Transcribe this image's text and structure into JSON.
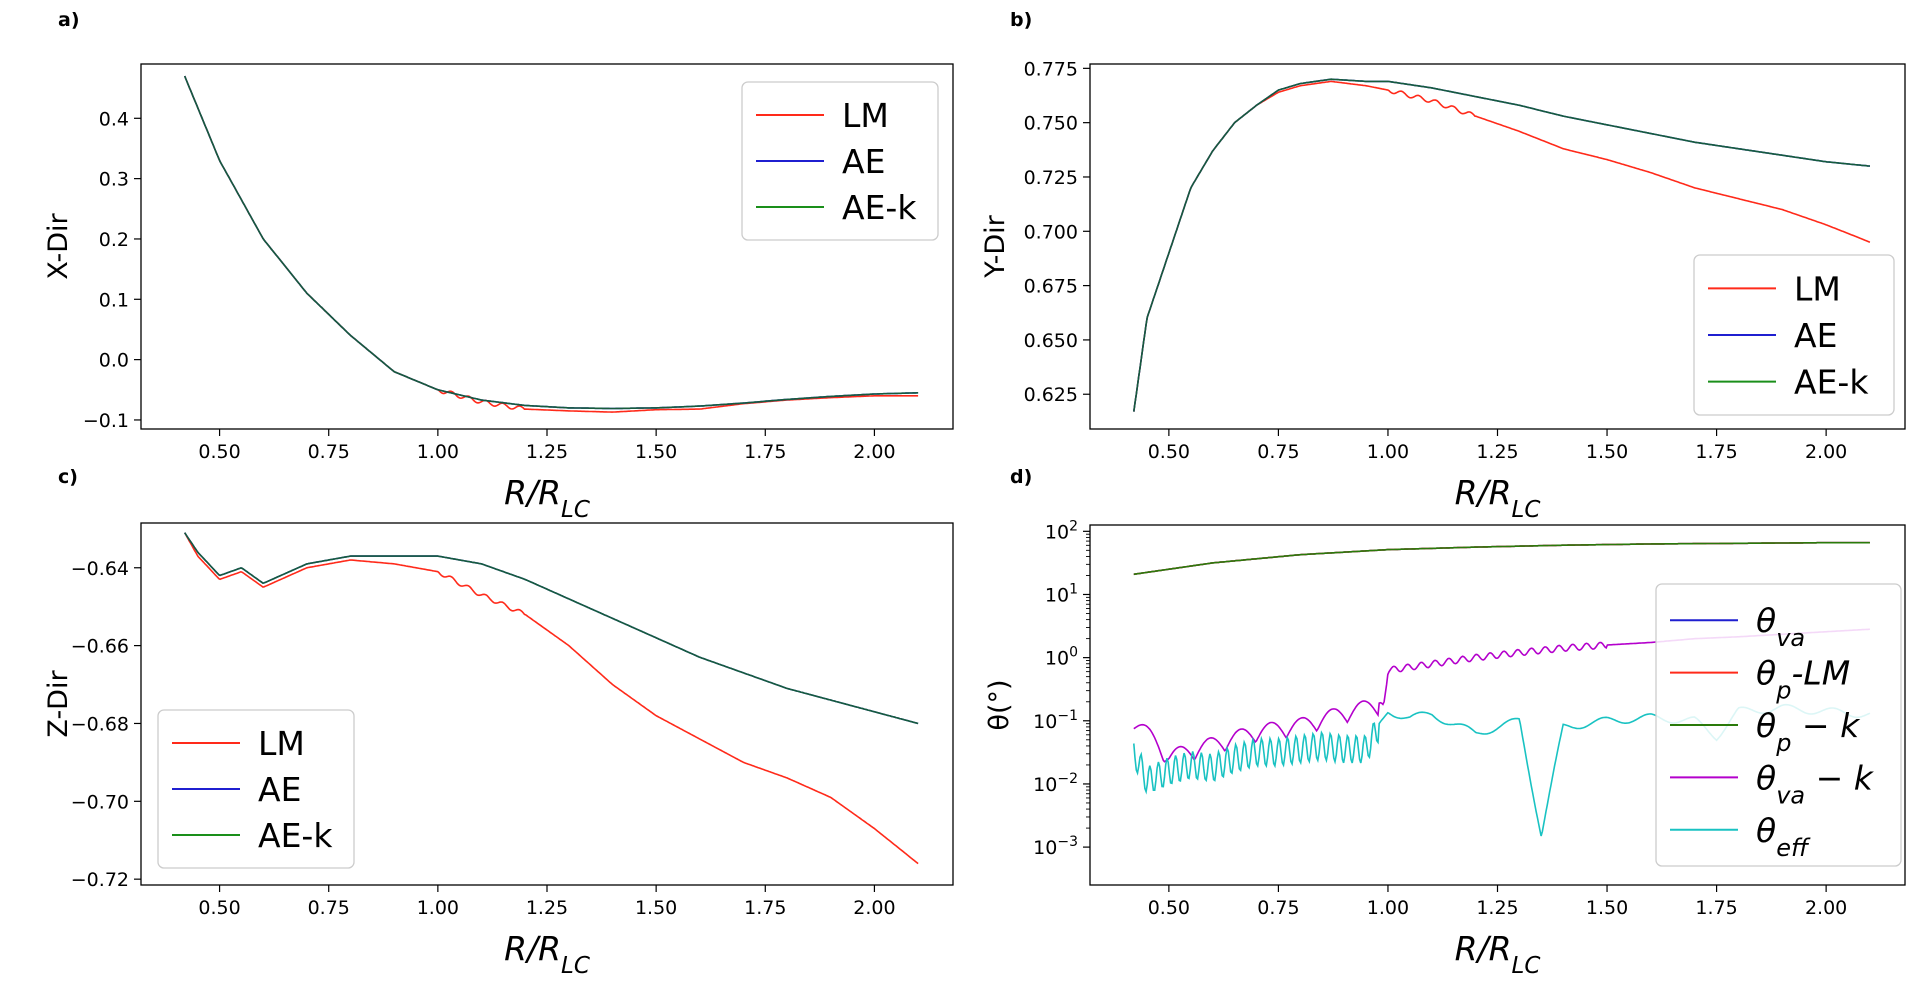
{
  "figure": {
    "panels": [
      "a)",
      "b)",
      "c)",
      "d)"
    ],
    "xlabel_main": "R/R",
    "xlabel_sub": "LC"
  },
  "colors": {
    "LM": "#ff2a1a",
    "AE": "#1f1fd0",
    "AEk": "#1a8f1a",
    "overlay": "#165c3c",
    "theta_va": "#1f1fd0",
    "theta_p_LM": "#ff2a1a",
    "theta_p_k": "#2a7a0a",
    "theta_va_k": "#b400cc",
    "theta_eff": "#19c2c2"
  },
  "chart_data": [
    {
      "panel": "a)",
      "type": "line",
      "ylabel": "X-Dir",
      "xlabel": "R/R_LC",
      "xlim": [
        0.32,
        2.18
      ],
      "ylim": [
        -0.115,
        0.49
      ],
      "xticks": [
        0.5,
        0.75,
        1.0,
        1.25,
        1.5,
        1.75,
        2.0
      ],
      "xtick_labels": [
        "0.50",
        "0.75",
        "1.00",
        "1.25",
        "1.50",
        "1.75",
        "2.00"
      ],
      "yticks": [
        -0.1,
        0.0,
        0.1,
        0.2,
        0.3,
        0.4
      ],
      "ytick_labels": [
        "−0.1",
        "0.0",
        "0.1",
        "0.2",
        "0.3",
        "0.4"
      ],
      "legend_position": "top-right",
      "series": [
        {
          "name": "LM",
          "x": [
            0.42,
            0.5,
            0.6,
            0.7,
            0.8,
            0.9,
            1.0,
            1.1,
            1.2,
            1.3,
            1.4,
            1.5,
            1.6,
            1.7,
            1.8,
            1.9,
            2.0,
            2.1
          ],
          "y": [
            0.47,
            0.33,
            0.2,
            0.11,
            0.04,
            -0.02,
            -0.05,
            -0.07,
            -0.082,
            -0.085,
            -0.087,
            -0.083,
            -0.082,
            -0.073,
            -0.067,
            -0.063,
            -0.06,
            -0.06
          ]
        },
        {
          "name": "AE",
          "x": [
            0.42,
            0.5,
            0.6,
            0.7,
            0.8,
            0.9,
            1.0,
            1.1,
            1.2,
            1.3,
            1.4,
            1.5,
            1.6,
            1.7,
            1.8,
            1.9,
            2.0,
            2.1
          ],
          "y": [
            0.47,
            0.33,
            0.2,
            0.11,
            0.04,
            -0.02,
            -0.05,
            -0.067,
            -0.076,
            -0.08,
            -0.081,
            -0.08,
            -0.077,
            -0.072,
            -0.066,
            -0.061,
            -0.057,
            -0.055
          ]
        },
        {
          "name": "AE-k",
          "x": [
            0.42,
            0.5,
            0.6,
            0.7,
            0.8,
            0.9,
            1.0,
            1.1,
            1.2,
            1.3,
            1.4,
            1.5,
            1.6,
            1.7,
            1.8,
            1.9,
            2.0,
            2.1
          ],
          "y": [
            0.47,
            0.33,
            0.2,
            0.11,
            0.04,
            -0.02,
            -0.05,
            -0.067,
            -0.076,
            -0.08,
            -0.081,
            -0.08,
            -0.077,
            -0.072,
            -0.066,
            -0.061,
            -0.057,
            -0.055
          ]
        }
      ]
    },
    {
      "panel": "b)",
      "type": "line",
      "ylabel": "Y-Dir",
      "xlabel": "R/R_LC",
      "xlim": [
        0.32,
        2.18
      ],
      "ylim": [
        0.609,
        0.777
      ],
      "xticks": [
        0.5,
        0.75,
        1.0,
        1.25,
        1.5,
        1.75,
        2.0
      ],
      "xtick_labels": [
        "0.50",
        "0.75",
        "1.00",
        "1.25",
        "1.50",
        "1.75",
        "2.00"
      ],
      "yticks": [
        0.625,
        0.65,
        0.675,
        0.7,
        0.725,
        0.75,
        0.775
      ],
      "ytick_labels": [
        "0.625",
        "0.650",
        "0.675",
        "0.700",
        "0.725",
        "0.750",
        "0.775"
      ],
      "legend_position": "bottom-right",
      "series": [
        {
          "name": "LM",
          "x": [
            0.42,
            0.45,
            0.5,
            0.55,
            0.6,
            0.65,
            0.7,
            0.75,
            0.8,
            0.87,
            0.95,
            1.0,
            1.1,
            1.2,
            1.3,
            1.4,
            1.5,
            1.6,
            1.7,
            1.8,
            1.9,
            2.0,
            2.1
          ],
          "y": [
            0.617,
            0.66,
            0.69,
            0.72,
            0.737,
            0.75,
            0.758,
            0.764,
            0.767,
            0.769,
            0.767,
            0.765,
            0.76,
            0.753,
            0.746,
            0.738,
            0.733,
            0.727,
            0.72,
            0.715,
            0.71,
            0.703,
            0.695
          ]
        },
        {
          "name": "AE",
          "x": [
            0.42,
            0.45,
            0.5,
            0.55,
            0.6,
            0.65,
            0.7,
            0.75,
            0.8,
            0.87,
            0.95,
            1.0,
            1.1,
            1.2,
            1.3,
            1.4,
            1.5,
            1.6,
            1.7,
            1.8,
            1.9,
            2.0,
            2.1
          ],
          "y": [
            0.617,
            0.66,
            0.69,
            0.72,
            0.737,
            0.75,
            0.758,
            0.765,
            0.768,
            0.77,
            0.769,
            0.769,
            0.766,
            0.762,
            0.758,
            0.753,
            0.749,
            0.745,
            0.741,
            0.738,
            0.735,
            0.732,
            0.73
          ]
        },
        {
          "name": "AE-k",
          "x": [
            0.42,
            0.45,
            0.5,
            0.55,
            0.6,
            0.65,
            0.7,
            0.75,
            0.8,
            0.87,
            0.95,
            1.0,
            1.1,
            1.2,
            1.3,
            1.4,
            1.5,
            1.6,
            1.7,
            1.8,
            1.9,
            2.0,
            2.1
          ],
          "y": [
            0.617,
            0.66,
            0.69,
            0.72,
            0.737,
            0.75,
            0.758,
            0.765,
            0.768,
            0.77,
            0.769,
            0.769,
            0.766,
            0.762,
            0.758,
            0.753,
            0.749,
            0.745,
            0.741,
            0.738,
            0.735,
            0.732,
            0.73
          ]
        }
      ]
    },
    {
      "panel": "c)",
      "type": "line",
      "ylabel": "Z-Dir",
      "xlabel": "R/R_LC",
      "xlim": [
        0.32,
        2.18
      ],
      "ylim": [
        -0.7215,
        -0.6285
      ],
      "xticks": [
        0.5,
        0.75,
        1.0,
        1.25,
        1.5,
        1.75,
        2.0
      ],
      "xtick_labels": [
        "0.50",
        "0.75",
        "1.00",
        "1.25",
        "1.50",
        "1.75",
        "2.00"
      ],
      "yticks": [
        -0.72,
        -0.7,
        -0.68,
        -0.66,
        -0.64
      ],
      "ytick_labels": [
        "−0.72",
        "−0.70",
        "−0.68",
        "−0.66",
        "−0.64"
      ],
      "legend_position": "bottom-left",
      "series": [
        {
          "name": "LM",
          "x": [
            0.42,
            0.45,
            0.5,
            0.55,
            0.6,
            0.7,
            0.8,
            0.9,
            1.0,
            1.1,
            1.2,
            1.3,
            1.4,
            1.5,
            1.6,
            1.7,
            1.8,
            1.9,
            2.0,
            2.1
          ],
          "y": [
            -0.631,
            -0.637,
            -0.643,
            -0.641,
            -0.645,
            -0.64,
            -0.638,
            -0.639,
            -0.641,
            -0.647,
            -0.652,
            -0.66,
            -0.67,
            -0.678,
            -0.684,
            -0.69,
            -0.694,
            -0.699,
            -0.707,
            -0.716
          ]
        },
        {
          "name": "AE",
          "x": [
            0.42,
            0.45,
            0.5,
            0.55,
            0.6,
            0.7,
            0.8,
            0.9,
            1.0,
            1.1,
            1.2,
            1.3,
            1.4,
            1.5,
            1.6,
            1.7,
            1.8,
            1.9,
            2.0,
            2.1
          ],
          "y": [
            -0.631,
            -0.636,
            -0.642,
            -0.64,
            -0.644,
            -0.639,
            -0.637,
            -0.637,
            -0.637,
            -0.639,
            -0.643,
            -0.648,
            -0.653,
            -0.658,
            -0.663,
            -0.667,
            -0.671,
            -0.674,
            -0.677,
            -0.68
          ]
        },
        {
          "name": "AE-k",
          "x": [
            0.42,
            0.45,
            0.5,
            0.55,
            0.6,
            0.7,
            0.8,
            0.9,
            1.0,
            1.1,
            1.2,
            1.3,
            1.4,
            1.5,
            1.6,
            1.7,
            1.8,
            1.9,
            2.0,
            2.1
          ],
          "y": [
            -0.631,
            -0.636,
            -0.642,
            -0.64,
            -0.644,
            -0.639,
            -0.637,
            -0.637,
            -0.637,
            -0.639,
            -0.643,
            -0.648,
            -0.653,
            -0.658,
            -0.663,
            -0.667,
            -0.671,
            -0.674,
            -0.677,
            -0.68
          ]
        }
      ]
    },
    {
      "panel": "d)",
      "type": "line",
      "yscale": "log",
      "ylabel": "θ(°)",
      "xlabel": "R/R_LC",
      "xlim": [
        0.32,
        2.18
      ],
      "ylim_log10": [
        -3.6,
        2.1
      ],
      "xticks": [
        0.5,
        0.75,
        1.0,
        1.25,
        1.5,
        1.75,
        2.0
      ],
      "xtick_labels": [
        "0.50",
        "0.75",
        "1.00",
        "1.25",
        "1.50",
        "1.75",
        "2.00"
      ],
      "yticks_log10": [
        -3,
        -2,
        -1,
        0,
        1,
        2
      ],
      "ytick_bases": [
        "10",
        "10",
        "10",
        "10",
        "10",
        "10"
      ],
      "ytick_exponents": [
        "−3",
        "−2",
        "−1",
        "0",
        "1",
        "2"
      ],
      "legend_position": "right",
      "series": [
        {
          "name": "θ_va",
          "x": [
            0.42,
            0.6,
            0.8,
            1.0,
            1.2,
            1.4,
            1.6,
            1.8,
            2.0,
            2.1
          ],
          "log10_y": [
            1.32,
            1.5,
            1.63,
            1.71,
            1.75,
            1.78,
            1.8,
            1.81,
            1.82,
            1.82
          ]
        },
        {
          "name": "θ_p-LM",
          "x": [
            0.42,
            0.6,
            0.8,
            1.0,
            1.2,
            1.4,
            1.6,
            1.8,
            2.0,
            2.1
          ],
          "log10_y": [
            1.32,
            1.5,
            1.63,
            1.71,
            1.75,
            1.78,
            1.8,
            1.81,
            1.82,
            1.82
          ]
        },
        {
          "name": "θ_p - k",
          "x": [
            0.42,
            0.6,
            0.8,
            1.0,
            1.2,
            1.4,
            1.6,
            1.8,
            2.0,
            2.1
          ],
          "log10_y": [
            1.32,
            1.5,
            1.63,
            1.71,
            1.75,
            1.78,
            1.8,
            1.81,
            1.82,
            1.82
          ]
        },
        {
          "name": "θ_va - k",
          "x": [
            0.42,
            0.5,
            0.6,
            0.7,
            0.8,
            0.9,
            0.99,
            1.0,
            1.1,
            1.2,
            1.3,
            1.4,
            1.5,
            1.6,
            1.7,
            1.8,
            1.9,
            2.0,
            2.1
          ],
          "log10_y": [
            -1.0,
            -1.6,
            -1.4,
            -1.2,
            -1.1,
            -0.9,
            -0.75,
            -0.2,
            -0.1,
            0.0,
            0.08,
            0.15,
            0.2,
            0.24,
            0.3,
            0.33,
            0.37,
            0.41,
            0.45
          ]
        },
        {
          "name": "θ_eff",
          "x": [
            0.42,
            0.45,
            0.5,
            0.55,
            0.6,
            0.65,
            0.7,
            0.75,
            0.8,
            0.85,
            0.9,
            0.95,
            1.0,
            1.05,
            1.1,
            1.2,
            1.3,
            1.35,
            1.4,
            1.5,
            1.6,
            1.7,
            1.75,
            1.8,
            1.9,
            2.0,
            2.1
          ],
          "log10_y": [
            -1.5,
            -1.95,
            -1.8,
            -1.7,
            -1.75,
            -1.6,
            -1.5,
            -1.5,
            -1.45,
            -1.4,
            -1.45,
            -1.45,
            -0.85,
            -0.95,
            -0.9,
            -1.2,
            -1.0,
            -2.8,
            -1.1,
            -1.0,
            -0.95,
            -1.0,
            -1.25,
            -0.85,
            -0.8,
            -0.85,
            -0.9
          ]
        }
      ]
    }
  ]
}
